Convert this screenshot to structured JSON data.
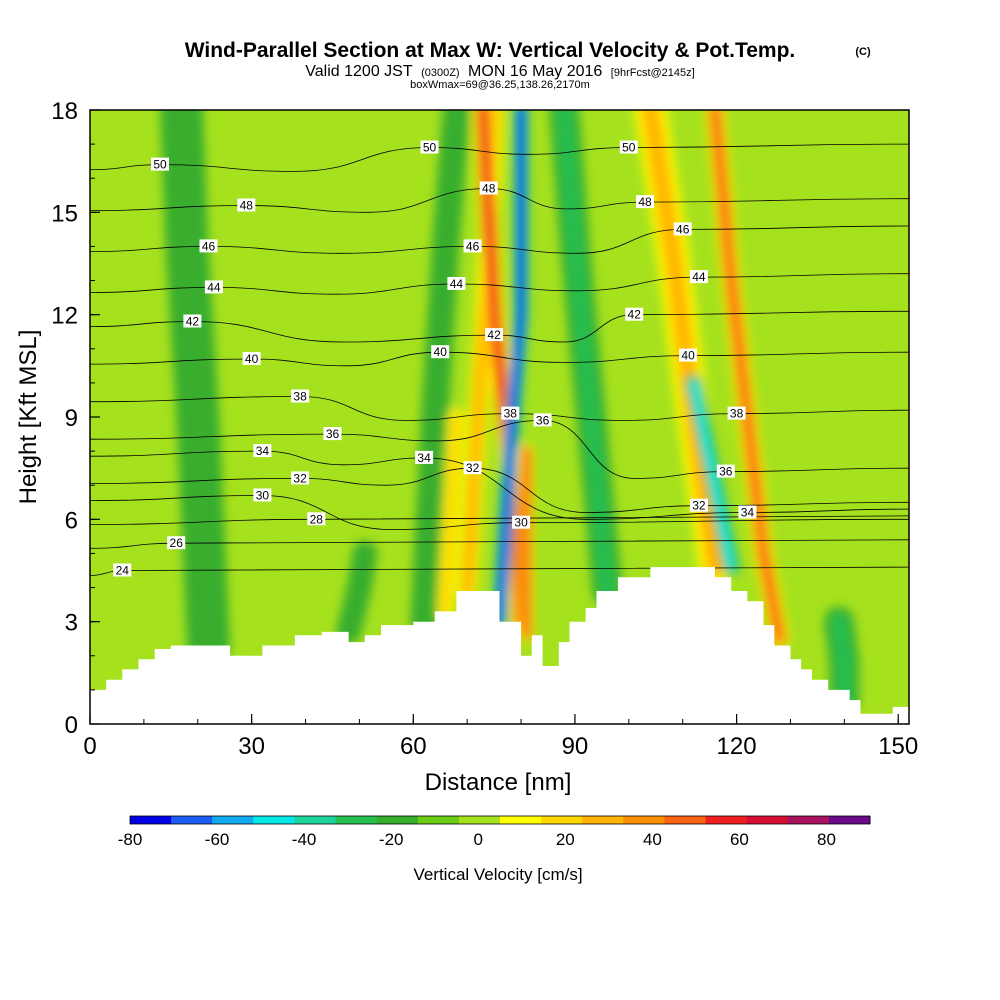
{
  "header": {
    "title": "Wind-Parallel Section at Max W: Vertical Velocity & Pot.Temp.",
    "title_suffix": "(C)",
    "subtitle_a": "Valid 1200 JST",
    "subtitle_b": "(0300Z)",
    "subtitle_c": "MON 16 May 2016",
    "subtitle_d": "[9hrFcst@2145z]",
    "line3": "boxWmax=69@36.25,138.26,2170m"
  },
  "chart_data": {
    "type": "heatmap",
    "title": "Wind-Parallel Section at Max W: Vertical Velocity & Pot.Temp.",
    "xlabel": "Distance [nm]",
    "ylabel": "Height [Kft MSL]",
    "xlim": [
      0,
      152
    ],
    "ylim": [
      0,
      18
    ],
    "x_ticks": [
      0,
      30,
      60,
      90,
      120,
      150
    ],
    "y_ticks": [
      0,
      3,
      6,
      9,
      12,
      15,
      18
    ],
    "colorbar": {
      "label": "Vertical Velocity [cm/s]",
      "ticks": [
        -80,
        -60,
        -40,
        -20,
        0,
        20,
        40,
        60,
        80
      ],
      "bounds": [
        -80,
        90
      ],
      "step": 10,
      "colors": [
        "#0000e6",
        "#1c5cf2",
        "#12a9f0",
        "#08e6e6",
        "#1fd49c",
        "#27be50",
        "#37ad2e",
        "#6acc14",
        "#a6e11e",
        "#ffff00",
        "#ffd700",
        "#ffb300",
        "#ff9000",
        "#fa6414",
        "#f01e1e",
        "#d60f32",
        "#a8125e",
        "#6a0a88"
      ]
    },
    "terrain_nm_kft": [
      [
        0,
        1.0
      ],
      [
        3,
        1.0
      ],
      [
        3,
        1.3
      ],
      [
        6,
        1.3
      ],
      [
        6,
        1.6
      ],
      [
        9,
        1.6
      ],
      [
        9,
        1.9
      ],
      [
        12,
        1.9
      ],
      [
        12,
        2.2
      ],
      [
        15,
        2.2
      ],
      [
        15,
        2.3
      ],
      [
        26,
        2.3
      ],
      [
        26,
        2.0
      ],
      [
        32,
        2.0
      ],
      [
        32,
        2.3
      ],
      [
        38,
        2.3
      ],
      [
        38,
        2.6
      ],
      [
        43,
        2.6
      ],
      [
        43,
        2.7
      ],
      [
        48,
        2.7
      ],
      [
        48,
        2.4
      ],
      [
        51,
        2.4
      ],
      [
        51,
        2.6
      ],
      [
        54,
        2.6
      ],
      [
        54,
        2.9
      ],
      [
        60,
        2.9
      ],
      [
        60,
        3.0
      ],
      [
        64,
        3.0
      ],
      [
        64,
        3.3
      ],
      [
        68,
        3.3
      ],
      [
        68,
        3.9
      ],
      [
        76,
        3.9
      ],
      [
        76,
        3.0
      ],
      [
        80,
        3.0
      ],
      [
        80,
        2.0
      ],
      [
        82,
        2.0
      ],
      [
        82,
        2.6
      ],
      [
        84,
        2.6
      ],
      [
        84,
        1.7
      ],
      [
        87,
        1.7
      ],
      [
        87,
        2.4
      ],
      [
        89,
        2.4
      ],
      [
        89,
        3.0
      ],
      [
        92,
        3.0
      ],
      [
        92,
        3.4
      ],
      [
        94,
        3.4
      ],
      [
        94,
        3.9
      ],
      [
        98,
        3.9
      ],
      [
        98,
        4.3
      ],
      [
        104,
        4.3
      ],
      [
        104,
        4.6
      ],
      [
        116,
        4.6
      ],
      [
        116,
        4.3
      ],
      [
        119,
        4.3
      ],
      [
        119,
        3.9
      ],
      [
        122,
        3.9
      ],
      [
        122,
        3.6
      ],
      [
        125,
        3.6
      ],
      [
        125,
        2.9
      ],
      [
        127,
        2.9
      ],
      [
        127,
        2.3
      ],
      [
        130,
        2.3
      ],
      [
        130,
        1.9
      ],
      [
        132,
        1.9
      ],
      [
        132,
        1.6
      ],
      [
        134,
        1.6
      ],
      [
        134,
        1.3
      ],
      [
        137,
        1.3
      ],
      [
        137,
        1.0
      ],
      [
        141,
        1.0
      ],
      [
        141,
        0.7
      ],
      [
        143,
        0.7
      ],
      [
        143,
        0.3
      ],
      [
        149,
        0.3
      ],
      [
        149,
        0.5
      ],
      [
        152,
        0.5
      ]
    ],
    "velocity_features": [
      {
        "name": "updraft-west-ridge",
        "value": 30,
        "path": [
          [
            70,
            3.9
          ],
          [
            72,
            9.0
          ],
          [
            74,
            14.0
          ],
          [
            75,
            18.0
          ]
        ],
        "width_nm": 1.2
      },
      {
        "name": "updraft-main",
        "value": 62,
        "path": [
          [
            80,
            3.0
          ],
          [
            79,
            6.0
          ],
          [
            77,
            9.0
          ],
          [
            75,
            12.0
          ],
          [
            74,
            15.0
          ],
          [
            73,
            18.0
          ]
        ],
        "width_nm": 1.3
      },
      {
        "name": "downdraft-main",
        "value": -72,
        "path": [
          [
            76,
            3.0
          ],
          [
            78,
            8.0
          ],
          [
            80,
            12.0
          ],
          [
            80,
            15.0
          ],
          [
            80,
            18.0
          ]
        ],
        "width_nm": 0.9
      },
      {
        "name": "updraft-low-lobe",
        "value": 55,
        "path": [
          [
            81,
            2.6
          ],
          [
            81,
            5.0
          ],
          [
            81,
            8.0
          ]
        ],
        "width_nm": 0.8
      },
      {
        "name": "updraft-east-band",
        "value": 35,
        "path": [
          [
            116,
            4.6
          ],
          [
            112,
            9.0
          ],
          [
            108,
            14.0
          ],
          [
            104,
            18.0
          ]
        ],
        "width_nm": 2.2
      },
      {
        "name": "updraft-east-strong",
        "value": 50,
        "path": [
          [
            128,
            2.5
          ],
          [
            125,
            5.0
          ],
          [
            122,
            9.0
          ],
          [
            119,
            13.0
          ],
          [
            116,
            18.0
          ]
        ],
        "width_nm": 1.2
      },
      {
        "name": "downdraft-east",
        "value": -45,
        "path": [
          [
            119,
            4.6
          ],
          [
            116,
            7.0
          ],
          [
            112,
            10.0
          ]
        ],
        "width_nm": 1.0
      },
      {
        "name": "downdraft-west-band",
        "value": -18,
        "path": [
          [
            62,
            3.0
          ],
          [
            64,
            9.0
          ],
          [
            66,
            14.0
          ],
          [
            68,
            18.0
          ]
        ],
        "width_nm": 1.8
      },
      {
        "name": "downdraft-mid-band",
        "value": -20,
        "path": [
          [
            96,
            3.9
          ],
          [
            93,
            9.0
          ],
          [
            90,
            14.0
          ],
          [
            88,
            18.0
          ]
        ],
        "width_nm": 2.0
      },
      {
        "name": "downdraft-far-west",
        "value": -10,
        "path": [
          [
            22,
            2.3
          ],
          [
            20,
            9.0
          ],
          [
            18,
            14.0
          ],
          [
            17,
            18.0
          ]
        ],
        "width_nm": 3.0
      },
      {
        "name": "downdraft-low-west",
        "value": -15,
        "path": [
          [
            48,
            2.7
          ],
          [
            50,
            4.0
          ],
          [
            51,
            5.0
          ]
        ],
        "width_nm": 1.6
      },
      {
        "name": "updraft-west-low",
        "value": 20,
        "path": [
          [
            66,
            3.3
          ],
          [
            67,
            6.0
          ],
          [
            68,
            9.0
          ]
        ],
        "width_nm": 1.0
      },
      {
        "name": "downdraft-east-valley",
        "value": -20,
        "path": [
          [
            140,
            0.7
          ],
          [
            140,
            1.8
          ],
          [
            139,
            3.0
          ]
        ],
        "width_nm": 2.0
      }
    ],
    "theta_contours": {
      "levels": [
        24,
        26,
        28,
        30,
        32,
        34,
        36,
        38,
        40,
        42,
        44,
        46,
        48,
        50
      ],
      "labels": [
        {
          "text": "50",
          "x": 13,
          "y": 16.4
        },
        {
          "text": "48",
          "x": 29,
          "y": 15.2
        },
        {
          "text": "46",
          "x": 22,
          "y": 14.0
        },
        {
          "text": "44",
          "x": 23,
          "y": 12.8
        },
        {
          "text": "42",
          "x": 19,
          "y": 11.8
        },
        {
          "text": "40",
          "x": 30,
          "y": 10.7
        },
        {
          "text": "38",
          "x": 39,
          "y": 9.6
        },
        {
          "text": "36",
          "x": 45,
          "y": 8.5
        },
        {
          "text": "34",
          "x": 32,
          "y": 8.0
        },
        {
          "text": "32",
          "x": 39,
          "y": 7.2
        },
        {
          "text": "30",
          "x": 32,
          "y": 6.7
        },
        {
          "text": "28",
          "x": 42,
          "y": 6.0
        },
        {
          "text": "26",
          "x": 16,
          "y": 5.3
        },
        {
          "text": "24",
          "x": 6,
          "y": 4.5
        },
        {
          "text": "50",
          "x": 63,
          "y": 16.9
        },
        {
          "text": "48",
          "x": 74,
          "y": 15.7
        },
        {
          "text": "46",
          "x": 71,
          "y": 14.0
        },
        {
          "text": "44",
          "x": 68,
          "y": 12.9
        },
        {
          "text": "42",
          "x": 75,
          "y": 11.4
        },
        {
          "text": "40",
          "x": 65,
          "y": 10.9
        },
        {
          "text": "38",
          "x": 78,
          "y": 9.1
        },
        {
          "text": "36",
          "x": 84,
          "y": 8.9
        },
        {
          "text": "34",
          "x": 62,
          "y": 7.8
        },
        {
          "text": "32",
          "x": 71,
          "y": 7.5
        },
        {
          "text": "30",
          "x": 80,
          "y": 5.9
        },
        {
          "text": "50",
          "x": 100,
          "y": 16.9
        },
        {
          "text": "48",
          "x": 103,
          "y": 15.3
        },
        {
          "text": "46",
          "x": 110,
          "y": 14.5
        },
        {
          "text": "44",
          "x": 113,
          "y": 13.1
        },
        {
          "text": "42",
          "x": 101,
          "y": 12.0
        },
        {
          "text": "40",
          "x": 111,
          "y": 10.8
        },
        {
          "text": "38",
          "x": 120,
          "y": 9.1
        },
        {
          "text": "36",
          "x": 118,
          "y": 7.4
        },
        {
          "text": "34",
          "x": 122,
          "y": 6.2
        },
        {
          "text": "32",
          "x": 113,
          "y": 6.4
        }
      ]
    }
  }
}
